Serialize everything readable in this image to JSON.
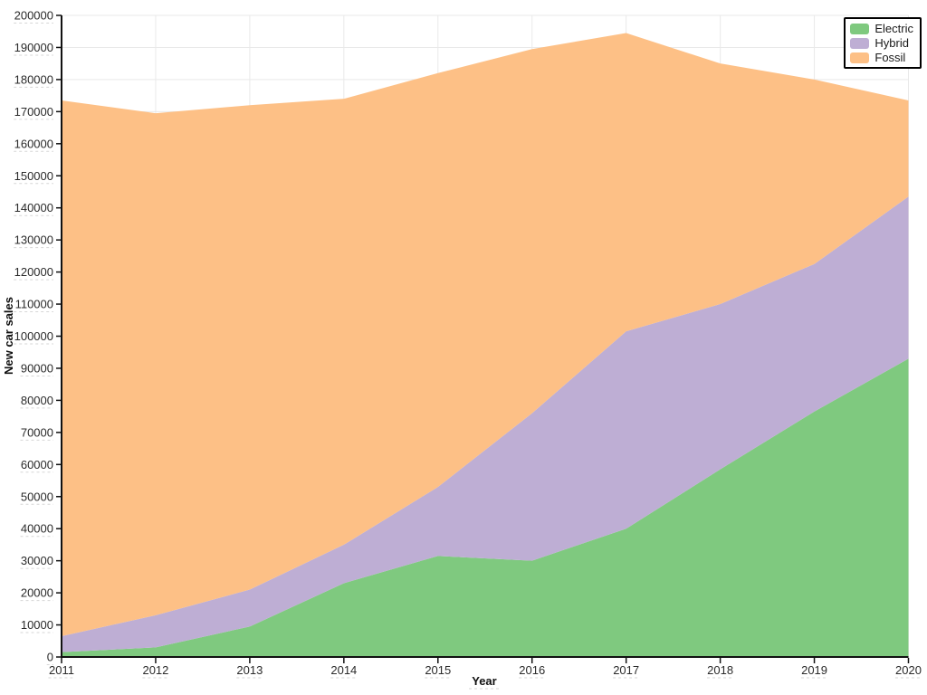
{
  "chart": {
    "background_color": "#ffffff",
    "grid_color": "#e9e9e9",
    "spine_color": "#111111",
    "tick_text_color": "#2b2b2b",
    "underline_color": "#d6d6d6",
    "legend": {
      "position": "top-right",
      "border_color": "#000000",
      "background_color": "#ffffff"
    }
  },
  "chart_data": {
    "type": "area",
    "stacked": true,
    "title": "",
    "xlabel": "Year",
    "ylabel": "New car sales",
    "x": [
      2011,
      2012,
      2013,
      2014,
      2015,
      2016,
      2017,
      2018,
      2019,
      2020
    ],
    "series": [
      {
        "name": "Electric",
        "color": "#7fc97f",
        "values": [
          1500,
          3000,
          9500,
          23000,
          31500,
          30000,
          40000,
          58500,
          76500,
          93000
        ]
      },
      {
        "name": "Hybrid",
        "color": "#beaed4",
        "values": [
          5000,
          10000,
          11500,
          12000,
          21500,
          46000,
          61500,
          51500,
          46000,
          50500
        ]
      },
      {
        "name": "Fossil",
        "color": "#fdc086",
        "values": [
          167000,
          156500,
          151000,
          139000,
          129000,
          113500,
          93000,
          75000,
          57500,
          30000
        ]
      }
    ],
    "stacked_totals": [
      173500,
      169500,
      172000,
      174000,
      182000,
      189500,
      194500,
      185000,
      180000,
      173500
    ],
    "ylim": [
      0,
      200000
    ],
    "ytick_step": 10000,
    "grid": true,
    "legend_position": "top-right"
  }
}
